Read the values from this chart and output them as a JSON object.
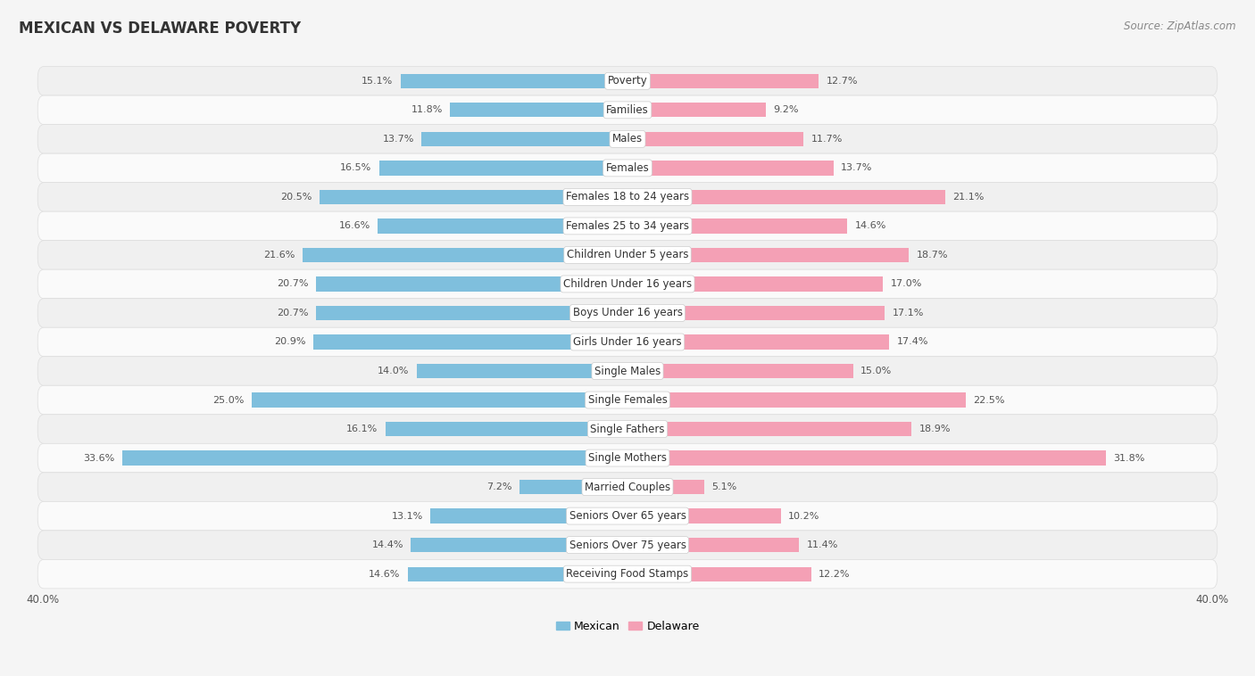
{
  "title": "MEXICAN VS DELAWARE POVERTY",
  "source": "Source: ZipAtlas.com",
  "categories": [
    "Poverty",
    "Families",
    "Males",
    "Females",
    "Females 18 to 24 years",
    "Females 25 to 34 years",
    "Children Under 5 years",
    "Children Under 16 years",
    "Boys Under 16 years",
    "Girls Under 16 years",
    "Single Males",
    "Single Females",
    "Single Fathers",
    "Single Mothers",
    "Married Couples",
    "Seniors Over 65 years",
    "Seniors Over 75 years",
    "Receiving Food Stamps"
  ],
  "mexican_values": [
    15.1,
    11.8,
    13.7,
    16.5,
    20.5,
    16.6,
    21.6,
    20.7,
    20.7,
    20.9,
    14.0,
    25.0,
    16.1,
    33.6,
    7.2,
    13.1,
    14.4,
    14.6
  ],
  "delaware_values": [
    12.7,
    9.2,
    11.7,
    13.7,
    21.1,
    14.6,
    18.7,
    17.0,
    17.1,
    17.4,
    15.0,
    22.5,
    18.9,
    31.8,
    5.1,
    10.2,
    11.4,
    12.2
  ],
  "mexican_color": "#7fbfdd",
  "delaware_color": "#f4a0b5",
  "row_color_even": "#f0f0f0",
  "row_color_odd": "#fafafa",
  "background_color": "#f5f5f5",
  "axis_limit": 40.0,
  "bar_height": 0.5,
  "label_fontsize": 8.5,
  "title_fontsize": 12,
  "source_fontsize": 8.5,
  "value_fontsize": 8,
  "legend_fontsize": 9,
  "value_color": "#555555",
  "category_color": "#333333"
}
